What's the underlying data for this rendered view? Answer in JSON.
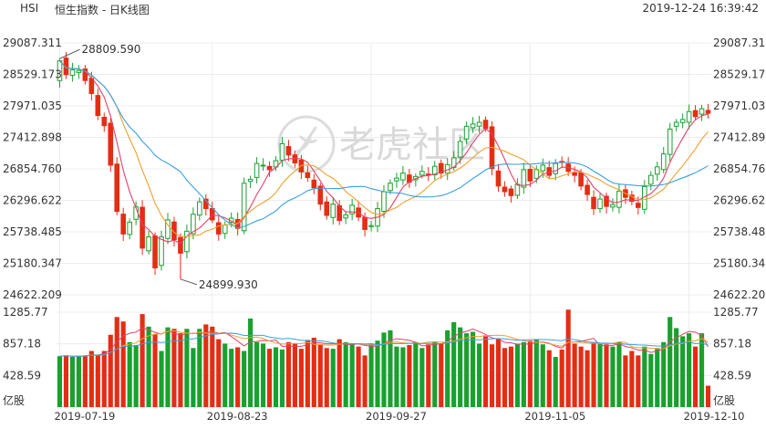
{
  "header": {
    "code": "HSI",
    "name": "恒生指数 - 日K线图",
    "timestamp": "2019-12-24 16:39:42"
  },
  "watermark": {
    "text": "老虎社区"
  },
  "chart_data": {
    "type": "candlestick",
    "price_axis": {
      "ticks": [
        "29087.311",
        "28529.173",
        "27971.035",
        "27412.898",
        "26854.760",
        "26296.622",
        "25738.485",
        "25180.347",
        "24622.209"
      ],
      "ylim": [
        24622.209,
        29087.311
      ]
    },
    "volume_axis": {
      "ticks": [
        "1285.77",
        "857.18",
        "428.59"
      ],
      "unit": "亿股",
      "ylim": [
        0,
        1285.77
      ]
    },
    "x_tick_labels": [
      {
        "label": "2019-07-19",
        "index": 0
      },
      {
        "label": "2019-08-23",
        "index": 24
      },
      {
        "label": "2019-09-27",
        "index": 49
      },
      {
        "label": "2019-11-05",
        "index": 74
      },
      {
        "label": "2019-12-10",
        "index": 99
      }
    ],
    "annotations": {
      "high": {
        "label": "28809.590",
        "index": 0,
        "value": 28809.59
      },
      "low": {
        "label": "24899.930",
        "index": 19,
        "value": 24899.93
      }
    },
    "colors": {
      "up": "#1aa02e",
      "down": "#e52d14",
      "ma5": "#e0426a",
      "ma10": "#f0a030",
      "ma20": "#3aa0dd"
    },
    "closes": [
      28769,
      28525,
      28610,
      28600,
      28420,
      28190,
      27800,
      27620,
      26920,
      26100,
      25700,
      25910,
      26180,
      25450,
      25650,
      25100,
      25650,
      25950,
      25600,
      25360,
      25750,
      26050,
      26270,
      26150,
      25950,
      25700,
      25860,
      25980,
      25800,
      26600,
      26670,
      26950,
      26920,
      26840,
      27000,
      27300,
      27100,
      26960,
      26800,
      26700,
      26520,
      26230,
      26030,
      26230,
      25940,
      26040,
      26210,
      26000,
      25780,
      25850,
      26150,
      26450,
      26600,
      26690,
      26780,
      26620,
      26720,
      26810,
      26760,
      26900,
      26780,
      26930,
      27050,
      27340,
      27610,
      27650,
      27680,
      27570,
      26860,
      26550,
      26450,
      26380,
      26580,
      26840,
      26640,
      26840,
      26920,
      26740,
      26950,
      26980,
      26810,
      26740,
      26550,
      26400,
      26150,
      26320,
      26190,
      26220,
      26460,
      26350,
      26280,
      26170,
      26540,
      26740,
      26890,
      27120,
      27560,
      27680,
      27730,
      27870,
      27780,
      27920,
      27840
    ],
    "volumes": [
      690,
      700,
      680,
      690,
      700,
      760,
      700,
      760,
      980,
      1220,
      1160,
      880,
      840,
      1260,
      1090,
      990,
      760,
      1080,
      1060,
      1000,
      1060,
      800,
      1060,
      1120,
      1090,
      920,
      860,
      790,
      810,
      760,
      1200,
      880,
      860,
      790,
      810,
      780,
      880,
      860,
      790,
      910,
      940,
      850,
      800,
      790,
      920,
      880,
      860,
      820,
      700,
      860,
      900,
      1010,
      1040,
      820,
      810,
      840,
      880,
      800,
      850,
      890,
      860,
      1040,
      1150,
      1080,
      1000,
      1020,
      860,
      960,
      850,
      920,
      800,
      820,
      860,
      880,
      900,
      920,
      850,
      770,
      680,
      780,
      1320,
      860,
      820,
      770,
      880,
      860,
      850,
      820,
      880,
      700,
      760,
      700,
      820,
      720,
      800,
      880,
      1220,
      1070,
      960,
      1000,
      820,
      1000,
      290
    ]
  }
}
